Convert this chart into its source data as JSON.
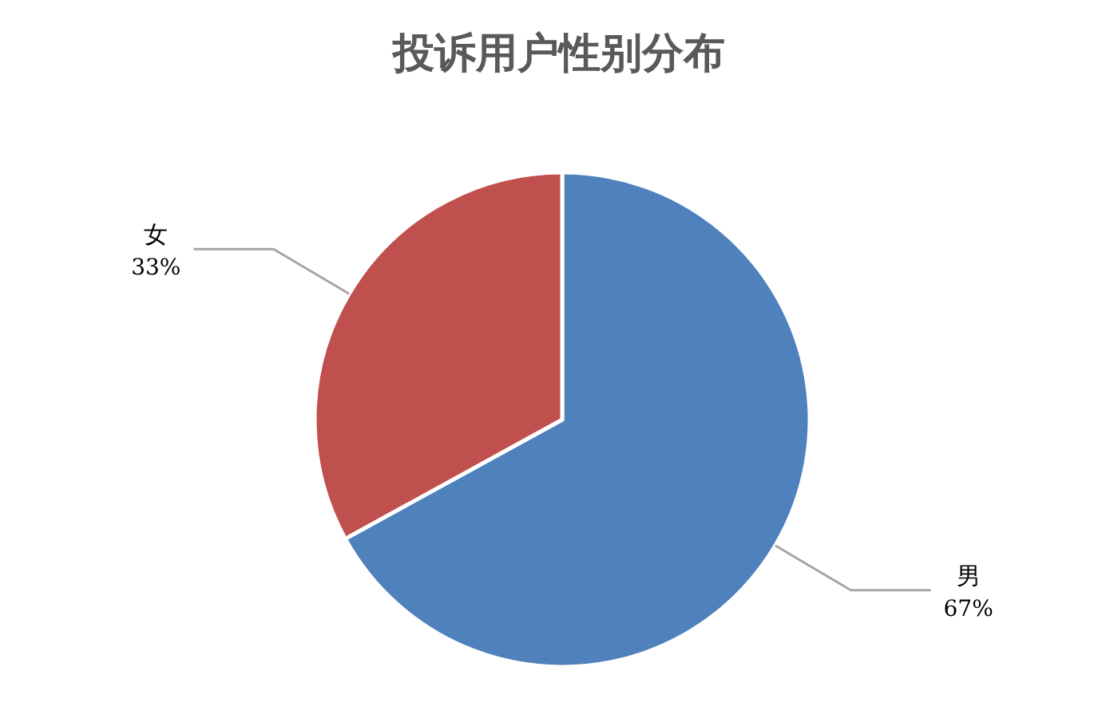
{
  "chart_data": {
    "type": "pie",
    "title": "投诉用户性别分布",
    "categories": [
      "男",
      "女"
    ],
    "values": [
      67,
      33
    ],
    "colors": [
      "#4f81bd",
      "#c0504d"
    ],
    "value_labels": [
      "67%",
      "33%"
    ]
  }
}
